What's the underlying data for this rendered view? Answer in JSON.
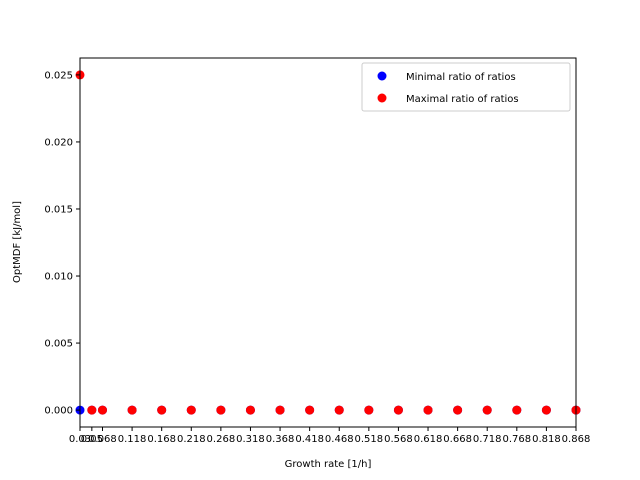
{
  "chart_data": {
    "type": "scatter",
    "title": "",
    "xlabel": "Growth rate [1/h]",
    "ylabel": "OptMDF [kJ/mol]",
    "xlim": [
      0.03,
      0.868
    ],
    "ylim": [
      -0.00126,
      0.02626
    ],
    "x_ticks": [
      0.03,
      0.05,
      0.068,
      0.118,
      0.168,
      0.218,
      0.268,
      0.318,
      0.368,
      0.418,
      0.468,
      0.518,
      0.568,
      0.618,
      0.668,
      0.718,
      0.768,
      0.818,
      0.868
    ],
    "x_tick_labels": [
      "0.03",
      "0.05",
      "0.068",
      "0.118",
      "0.168",
      "0.218",
      "0.268",
      "0.318",
      "0.368",
      "0.418",
      "0.468",
      "0.518",
      "0.568",
      "0.618",
      "0.668",
      "0.718",
      "0.768",
      "0.818",
      "0.868"
    ],
    "y_ticks": [
      0.0,
      0.005,
      0.01,
      0.015,
      0.02,
      0.025
    ],
    "y_tick_labels": [
      "0.000",
      "0.005",
      "0.010",
      "0.015",
      "0.020",
      "0.025"
    ],
    "grid": false,
    "legend_position": "top-right",
    "series": [
      {
        "name": "Minimal ratio of ratios",
        "color": "#0000ff",
        "x": [
          0.03,
          0.05,
          0.068,
          0.118,
          0.168,
          0.218,
          0.268,
          0.318,
          0.368,
          0.418,
          0.468,
          0.518,
          0.568,
          0.618,
          0.668,
          0.718,
          0.768,
          0.818,
          0.868
        ],
        "y": [
          0,
          0,
          0,
          0,
          0,
          0,
          0,
          0,
          0,
          0,
          0,
          0,
          0,
          0,
          0,
          0,
          0,
          0,
          0
        ]
      },
      {
        "name": "Maximal ratio of ratios",
        "color": "#ff0000",
        "x": [
          0.03,
          0.05,
          0.068,
          0.118,
          0.168,
          0.218,
          0.268,
          0.318,
          0.368,
          0.418,
          0.468,
          0.518,
          0.568,
          0.618,
          0.668,
          0.718,
          0.768,
          0.818,
          0.868
        ],
        "y": [
          0.025,
          0,
          0,
          0,
          0,
          0,
          0,
          0,
          0,
          0,
          0,
          0,
          0,
          0,
          0,
          0,
          0,
          0,
          0
        ]
      }
    ]
  }
}
